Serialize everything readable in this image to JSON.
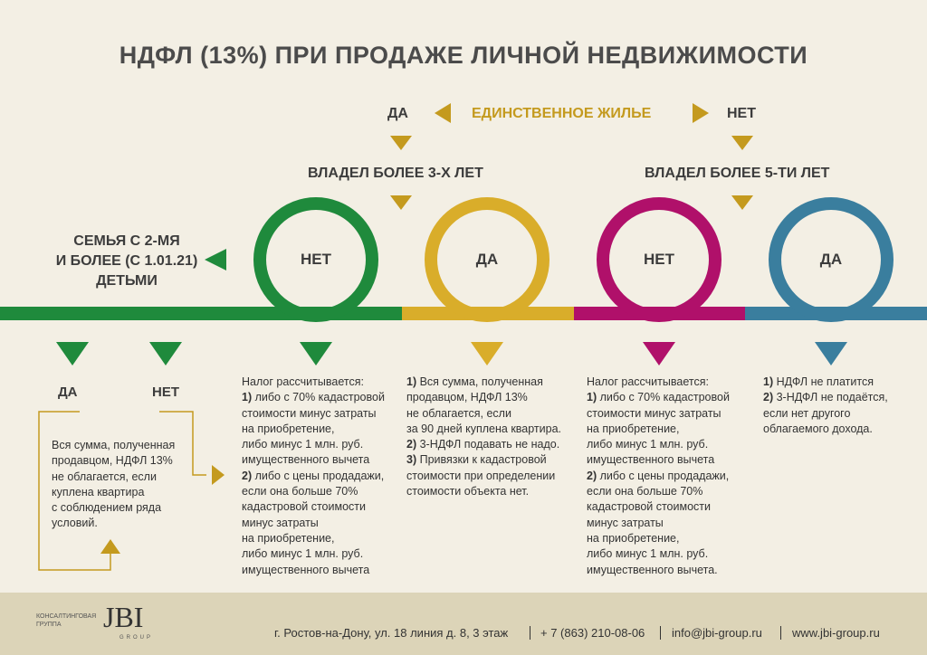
{
  "title": "НДФЛ (13%) ПРИ ПРОДАЖЕ ЛИЧНОЙ НЕДВИЖИМОСТИ",
  "top": {
    "yes": "ДА",
    "question": "ЕДИНСТВЕННОЕ ЖИЛЬЕ",
    "no": "НЕТ"
  },
  "branches": [
    "ВЛАДЕЛ БОЛЕЕ 3-Х ЛЕТ",
    "ВЛАДЕЛ БОЛЕЕ 5-ТИ ЛЕТ"
  ],
  "family": {
    "lines": [
      "СЕМЬЯ С 2-МЯ",
      "И БОЛЕЕ (С 1.01.21)",
      "ДЕТЬМИ"
    ],
    "yes": "ДА",
    "no": "НЕТ",
    "note": [
      "Вся сумма, полученная",
      "продавцом, НДФЛ 13%",
      "не облагается, если",
      "куплена квартира",
      "с соблюдением ряда",
      "условий."
    ]
  },
  "circles": [
    "НЕТ",
    "ДА",
    "НЕТ",
    "ДА"
  ],
  "columns": [
    {
      "lines": [
        "Налог рассчитывается:",
        "1) либо с 70% кадастровой",
        "стоимости минус затраты",
        "на приобретение,",
        "либо минус 1 млн. руб.",
        "имущественного вычета",
        "2) либо с цены продадажи,",
        "если она больше 70%",
        "кадастровой стоимости",
        "минус затраты",
        "на приобретение,",
        "либо минус 1 млн. руб.",
        "имущественного вычета"
      ]
    },
    {
      "lines": [
        "1) Вся сумма, полученная",
        "продавцом, НДФЛ 13%",
        "не облагается, если",
        "за 90 дней куплена квартира.",
        "2) 3-НДФЛ подавать не надо.",
        "3) Привязки к кадастровой",
        "стоимости при определении",
        "стоимости объекта нет."
      ]
    },
    {
      "lines": [
        "Налог рассчитывается:",
        "1) либо с 70% кадастровой",
        "стоимости минус затраты",
        "на приобретение,",
        "либо минус 1 млн. руб.",
        "имущественного вычета",
        "2) либо с цены продадажи,",
        "если она больше 70%",
        "кадастровой стоимости",
        "минус затраты",
        "на приобретение,",
        "либо минус 1 млн. руб.",
        "имущественного вычета."
      ]
    },
    {
      "lines": [
        "1) НДФЛ не платится",
        "2) 3-НДФЛ не подаётся,",
        "если нет другого",
        "облагаемого дохода."
      ]
    }
  ],
  "footer": {
    "logo": "JBI",
    "company": [
      "КОНСАЛТИНГОВАЯ",
      "ГРУППА"
    ],
    "group": "GROUP",
    "address": "г. Ростов-на-Дону, ул. 18 линия д. 8, 3 этаж",
    "phone": "+ 7 (863) 210-08-06",
    "email": "info@jbi-group.ru",
    "site": "www.jbi-group.ru"
  }
}
